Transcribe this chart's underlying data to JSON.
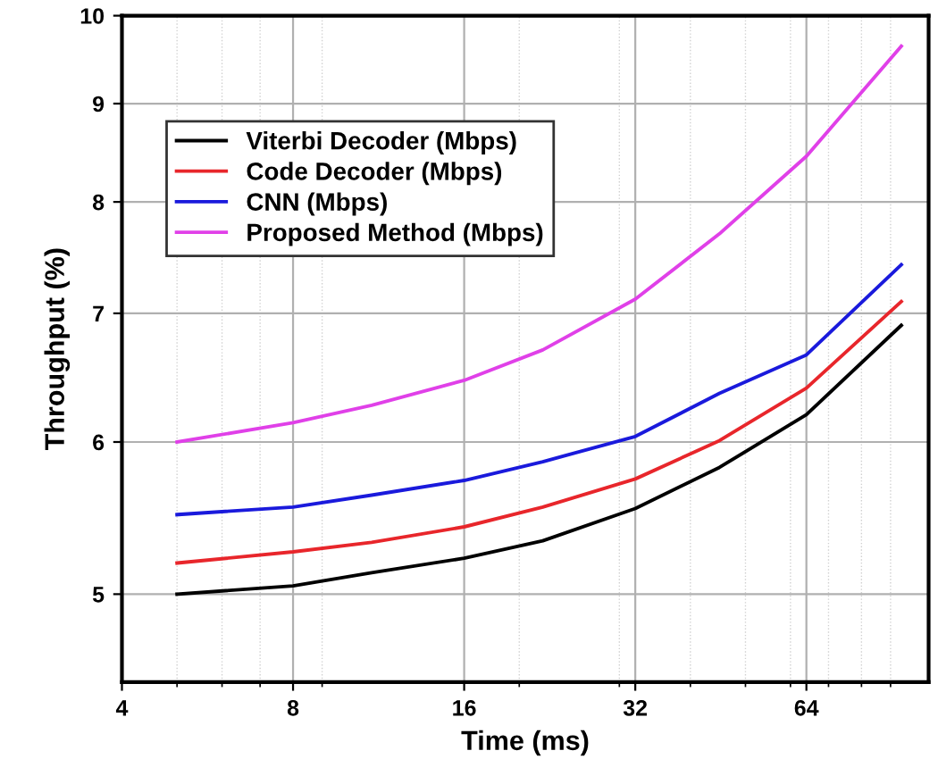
{
  "chart_data": {
    "type": "line",
    "xlabel": "Time (ms)",
    "ylabel": "Throughput (%)",
    "log": "xy",
    "x": [
      5,
      8,
      11,
      16,
      22,
      32,
      45,
      64,
      94
    ],
    "series": [
      {
        "name": "Viterbi Decoder (Mbps)",
        "color": "#000000",
        "values": [
          5.0,
          5.05,
          5.13,
          5.22,
          5.33,
          5.54,
          5.82,
          6.2,
          6.9
        ]
      },
      {
        "name": "Code Decoder (Mbps)",
        "color": "#e8262b",
        "values": [
          5.19,
          5.26,
          5.32,
          5.42,
          5.55,
          5.74,
          6.01,
          6.4,
          7.1
        ]
      },
      {
        "name": "CNN (Mbps)",
        "color": "#1a1adc",
        "values": [
          5.5,
          5.55,
          5.63,
          5.73,
          5.86,
          6.04,
          6.36,
          6.66,
          7.42
        ]
      },
      {
        "name": "Proposed Method (Mbps)",
        "color": "#e040e8",
        "values": [
          6.0,
          6.14,
          6.27,
          6.46,
          6.7,
          7.12,
          7.7,
          8.45,
          9.64
        ]
      }
    ],
    "xlim": [
      4,
      105
    ],
    "xticks": [
      4,
      8,
      16,
      32,
      64
    ],
    "ylim": [
      4.5,
      10
    ],
    "yticks": [
      5,
      6,
      7,
      8,
      9,
      10
    ],
    "grid": true,
    "legend": "top left",
    "marker": "none",
    "line_style": "solid"
  }
}
